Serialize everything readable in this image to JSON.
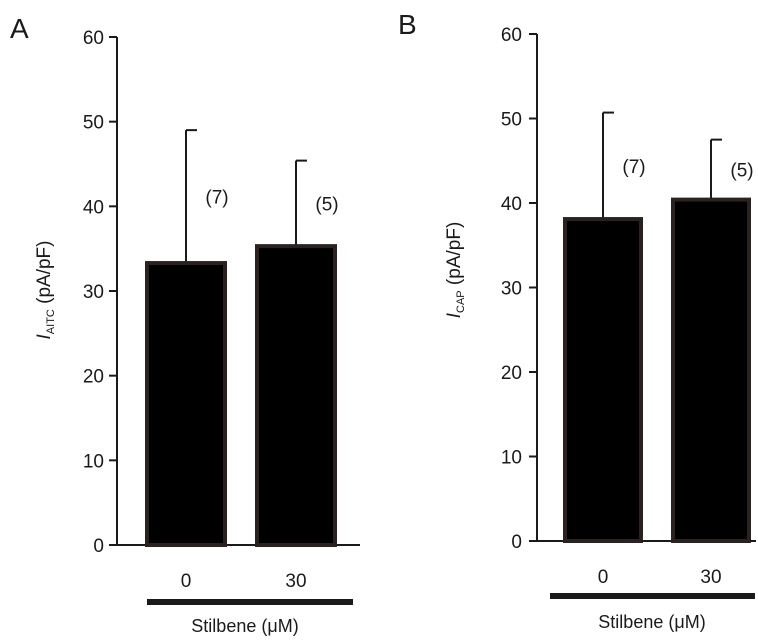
{
  "chart_data": [
    {
      "panel": "A",
      "type": "bar",
      "categories": [
        "0",
        "30"
      ],
      "values": [
        33.3,
        35.3
      ],
      "error_upper": [
        49.0,
        45.4
      ],
      "n_labels": [
        "(7)",
        "(5)"
      ],
      "ylim": [
        0,
        60
      ],
      "yticks": [
        0,
        10,
        20,
        30,
        40,
        50,
        60
      ],
      "ylabel_main": "I",
      "ylabel_sub": "AITC",
      "ylabel_unit": "(pA/pF)",
      "xlabel": "Stilbene (μM)"
    },
    {
      "panel": "B",
      "type": "bar",
      "categories": [
        "0",
        "30"
      ],
      "values": [
        38.1,
        40.4
      ],
      "error_upper": [
        50.7,
        47.5
      ],
      "n_labels": [
        "(7)",
        "(5)"
      ],
      "ylim": [
        0,
        60
      ],
      "yticks": [
        0,
        10,
        20,
        30,
        40,
        50,
        60
      ],
      "ylabel_main": "I",
      "ylabel_sub": "CAP",
      "ylabel_unit": "(pA/pF)",
      "xlabel": "Stilbene (μM)"
    }
  ],
  "colors": {
    "bar_fill": "#000000",
    "bar_edge": "#2a2220",
    "axis": "#1a1a1a"
  }
}
